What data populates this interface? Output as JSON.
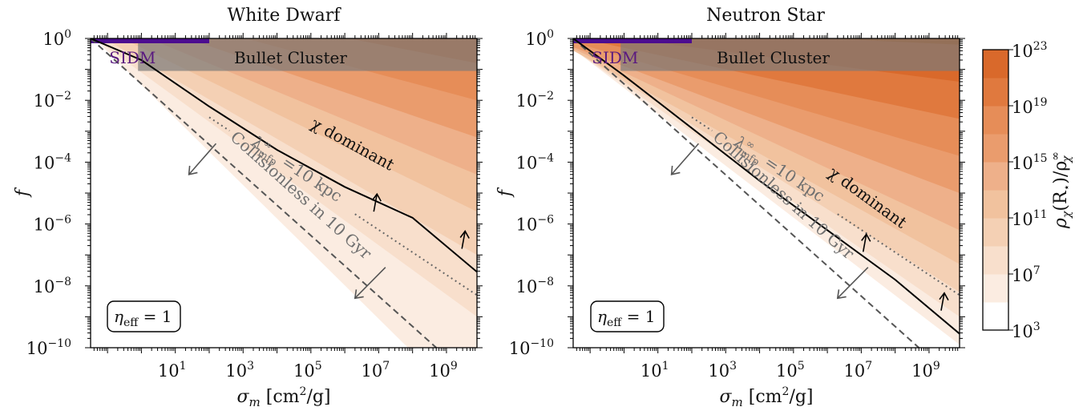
{
  "colors": {
    "levels": [
      "#ffffff",
      "#fbece1",
      "#f8dfcc",
      "#f4d0b4",
      "#f1c29e",
      "#eeb08a",
      "#ea9c6d",
      "#e68d58",
      "#e0793e",
      "#d9692b",
      "#d05808"
    ],
    "bullet": "#7a7a7a",
    "sidm": "#4c0d8f",
    "sidm_text": "#5a1a80",
    "line": "#000000",
    "dashed": "#555555",
    "dotted": "#666666",
    "collisionless_text": "#707070",
    "mfp_text": "#707070"
  },
  "chart_data": [
    {
      "type": "contour",
      "title": "White Dwarf",
      "xlabel": "σ_m [cm²/g]",
      "ylabel": "f",
      "xscale": "log",
      "yscale": "log",
      "xlim_log10": [
        -1.5,
        9.9
      ],
      "ylim_log10": [
        -10,
        0
      ],
      "xticks": [
        {
          "exp": 1,
          "label": "10",
          "sup": "1"
        },
        {
          "exp": 3,
          "label": "10",
          "sup": "3"
        },
        {
          "exp": 5,
          "label": "10",
          "sup": "5"
        },
        {
          "exp": 7,
          "label": "10",
          "sup": "7"
        },
        {
          "exp": 9,
          "label": "10",
          "sup": "9"
        }
      ],
      "yticks": [
        {
          "exp": 0,
          "label": "10",
          "sup": "0"
        },
        {
          "exp": -2,
          "label": "10",
          "sup": "−2"
        },
        {
          "exp": -4,
          "label": "10",
          "sup": "−4"
        },
        {
          "exp": -6,
          "label": "10",
          "sup": "−6"
        },
        {
          "exp": -8,
          "label": "10",
          "sup": "−8"
        },
        {
          "exp": -10,
          "label": "10",
          "sup": "−10"
        }
      ],
      "contour_boundaries_logf_at_logsigma": {
        "0": [
          -1.5,
          -1.1,
          -0.7,
          -0.3,
          0.1,
          0.5,
          0.9,
          1.3,
          1.7,
          2.1
        ],
        "9.9": [
          -12.2,
          -9.0,
          -7.0,
          -5.6,
          -4.4,
          -3.2,
          -2.0,
          -0.8,
          0.4,
          1.6
        ]
      },
      "chi_dominant_curve": [
        [
          -1.5,
          0.0
        ],
        [
          0,
          -0.7
        ],
        [
          2,
          -2.2
        ],
        [
          4,
          -3.6
        ],
        [
          6,
          -4.8
        ],
        [
          8,
          -5.8
        ],
        [
          9.9,
          -7.55
        ]
      ],
      "collisionless_line": [
        [
          -1.5,
          0.0
        ],
        [
          8.7,
          -10
        ]
      ],
      "mfp_line": [
        [
          -1.5,
          0.0
        ],
        [
          9.9,
          -8.3
        ]
      ],
      "mfp_line_visible_from_logsigma": 2.6,
      "bullet_cluster": {
        "logsigma_min": -0.1,
        "logsigma_max": 9.9,
        "logf_min": -1.05,
        "logf_max": 0.0,
        "label": "Bullet Cluster"
      },
      "sidm": {
        "logsigma_min": -1.5,
        "logsigma_max": 2.0,
        "logf": 0.0,
        "label": "SIDM"
      },
      "labels": {
        "chi_dominant": "χ dominant",
        "collisionless": "Collisionless in 10 Gyr",
        "mfp": "λ∞mfp =10 kpc",
        "mfp_main": "λ",
        "mfp_sup": "∞",
        "mfp_sub": "mfp",
        "mfp_rest": " =10 kpc",
        "eta_main": "η",
        "eta_sub": "eff",
        "eta_rest": " = 1"
      }
    },
    {
      "type": "contour",
      "title": "Neutron Star",
      "xlabel": "σ_m [cm²/g]",
      "ylabel": "f",
      "xscale": "log",
      "yscale": "log",
      "xlim_log10": [
        -1.5,
        9.9
      ],
      "ylim_log10": [
        -10,
        0
      ],
      "xticks": [
        {
          "exp": 1,
          "label": "10",
          "sup": "1"
        },
        {
          "exp": 3,
          "label": "10",
          "sup": "3"
        },
        {
          "exp": 5,
          "label": "10",
          "sup": "5"
        },
        {
          "exp": 7,
          "label": "10",
          "sup": "7"
        },
        {
          "exp": 9,
          "label": "10",
          "sup": "9"
        }
      ],
      "yticks": [
        {
          "exp": 0,
          "label": "10",
          "sup": "0"
        },
        {
          "exp": -2,
          "label": "10",
          "sup": "−2"
        },
        {
          "exp": -4,
          "label": "10",
          "sup": "−4"
        },
        {
          "exp": -6,
          "label": "10",
          "sup": "−6"
        },
        {
          "exp": -8,
          "label": "10",
          "sup": "−8"
        },
        {
          "exp": -10,
          "label": "10",
          "sup": "−10"
        }
      ],
      "contour_boundaries_logf_at_logsigma": {
        "0": [
          -1.6,
          -1.5,
          -1.4,
          -1.3,
          -1.1,
          -0.9,
          -0.6,
          -0.3,
          0.0,
          0.3
        ],
        "9.9": [
          -9.9,
          -9.0,
          -8.2,
          -7.3,
          -6.2,
          -5.0,
          -3.8,
          -2.6,
          -1.4,
          -0.2
        ]
      },
      "chi_dominant_curve": [
        [
          -1.5,
          0.0
        ],
        [
          0,
          -1.2
        ],
        [
          2,
          -2.9
        ],
        [
          4,
          -4.6
        ],
        [
          6,
          -6.2
        ],
        [
          8,
          -7.8
        ],
        [
          9.9,
          -9.55
        ]
      ],
      "collisionless_line": [
        [
          -1.5,
          0.0
        ],
        [
          8.7,
          -10
        ]
      ],
      "mfp_line": [
        [
          -1.5,
          0.0
        ],
        [
          9.9,
          -8.3
        ]
      ],
      "mfp_line_visible_from_logsigma": 2.6,
      "bullet_cluster": {
        "logsigma_min": -0.1,
        "logsigma_max": 9.9,
        "logf_min": -1.05,
        "logf_max": 0.0,
        "label": "Bullet Cluster"
      },
      "sidm": {
        "logsigma_min": -1.5,
        "logsigma_max": 2.0,
        "logf": 0.0,
        "label": "SIDM"
      },
      "labels": {
        "chi_dominant": "χ dominant",
        "collisionless": "Collisionless in 10 Gyr",
        "mfp": "λ∞mfp =10 kpc",
        "mfp_main": "λ",
        "mfp_sup": "∞",
        "mfp_sub": "mfp",
        "mfp_rest": " =10 kpc",
        "eta_main": "η",
        "eta_sub": "eff",
        "eta_rest": " = 1"
      }
    },
    {
      "type": "colorbar",
      "label": "ρχ(R⋆)/ρ∞χ",
      "label_main": "ρ",
      "label_sub": "χ",
      "label_arg": "(R",
      "label_star": "⋆",
      "label_mid": ")/ρ",
      "label_sup": "∞",
      "label_sub2": "χ",
      "levels_log10": [
        3,
        5,
        7,
        9,
        11,
        13,
        15,
        17,
        19,
        21,
        23
      ],
      "tick_labels": [
        {
          "exp": 3,
          "label": "10",
          "sup": "3"
        },
        {
          "exp": 7,
          "label": "10",
          "sup": "7"
        },
        {
          "exp": 11,
          "label": "10",
          "sup": "11"
        },
        {
          "exp": 15,
          "label": "10",
          "sup": "15"
        },
        {
          "exp": 19,
          "label": "10",
          "sup": "19"
        },
        {
          "exp": 23,
          "label": "10",
          "sup": "23"
        }
      ]
    }
  ]
}
